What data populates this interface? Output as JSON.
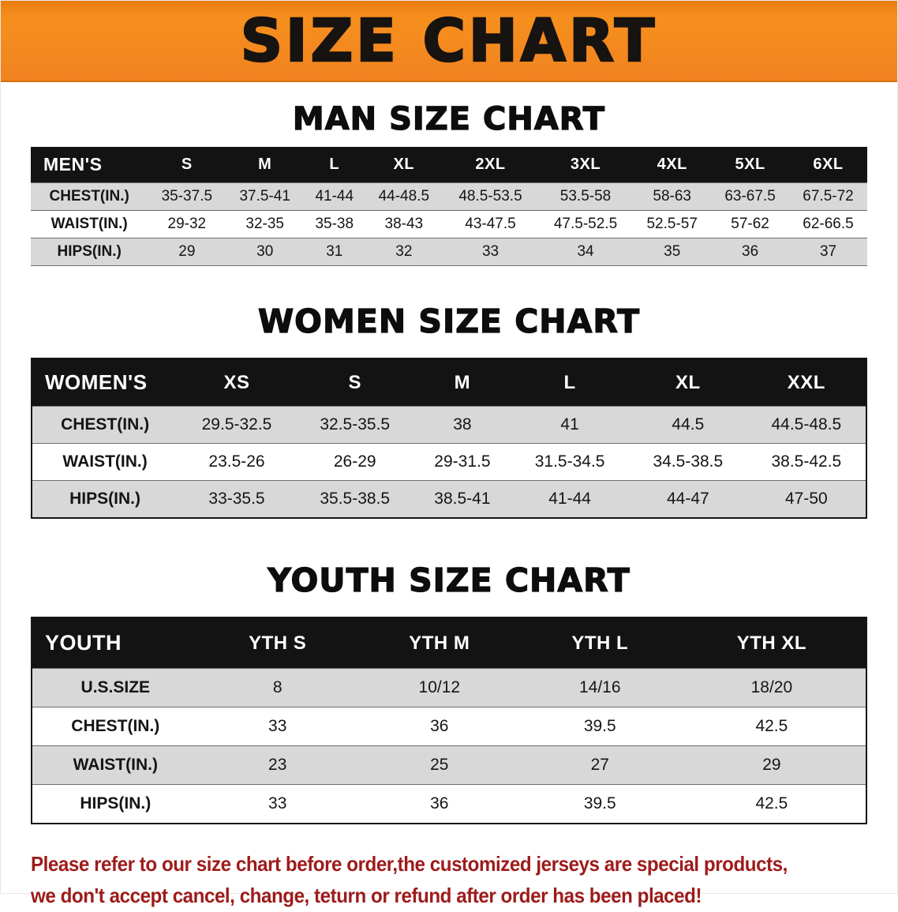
{
  "banner": {
    "title": "SIZE CHART"
  },
  "sections": [
    {
      "id": "men",
      "heading": "MAN SIZE CHART",
      "table": {
        "title": "MEN'S",
        "sizes": [
          "S",
          "M",
          "L",
          "XL",
          "2XL",
          "3XL",
          "4XL",
          "5XL",
          "6XL"
        ],
        "rows": [
          {
            "label": "CHEST(IN.)",
            "values": [
              "35-37.5",
              "37.5-41",
              "41-44",
              "44-48.5",
              "48.5-53.5",
              "53.5-58",
              "58-63",
              "63-67.5",
              "67.5-72"
            ]
          },
          {
            "label": "WAIST(IN.)",
            "values": [
              "29-32",
              "32-35",
              "35-38",
              "38-43",
              "43-47.5",
              "47.5-52.5",
              "52.5-57",
              "57-62",
              "62-66.5"
            ]
          },
          {
            "label": "HIPS(IN.)",
            "values": [
              "29",
              "30",
              "31",
              "32",
              "33",
              "34",
              "35",
              "36",
              "37"
            ]
          }
        ]
      }
    },
    {
      "id": "women",
      "heading": "WOMEN SIZE CHART",
      "table": {
        "title": "WOMEN'S",
        "sizes": [
          "XS",
          "S",
          "M",
          "L",
          "XL",
          "XXL"
        ],
        "rows": [
          {
            "label": "CHEST(IN.)",
            "values": [
              "29.5-32.5",
              "32.5-35.5",
              "38",
              "41",
              "44.5",
              "44.5-48.5"
            ]
          },
          {
            "label": "WAIST(IN.)",
            "values": [
              "23.5-26",
              "26-29",
              "29-31.5",
              "31.5-34.5",
              "34.5-38.5",
              "38.5-42.5"
            ]
          },
          {
            "label": "HIPS(IN.)",
            "values": [
              "33-35.5",
              "35.5-38.5",
              "38.5-41",
              "41-44",
              "44-47",
              "47-50"
            ]
          }
        ]
      }
    },
    {
      "id": "youth",
      "heading": "YOUTH SIZE CHART",
      "table": {
        "title": "YOUTH",
        "sizes": [
          "YTH S",
          "YTH M",
          "YTH L",
          "YTH XL"
        ],
        "rows": [
          {
            "label": "U.S.SIZE",
            "values": [
              "8",
              "10/12",
              "14/16",
              "18/20"
            ]
          },
          {
            "label": "CHEST(IN.)",
            "values": [
              "33",
              "36",
              "39.5",
              "42.5"
            ]
          },
          {
            "label": "WAIST(IN.)",
            "values": [
              "23",
              "25",
              "27",
              "29"
            ]
          },
          {
            "label": "HIPS(IN.)",
            "values": [
              "33",
              "36",
              "39.5",
              "42.5"
            ]
          }
        ]
      }
    }
  ],
  "disclaimer": {
    "lines": [
      "Please refer to our size chart before order,the customized jerseys are special products,",
      "we don't accept cancel, change, teturn or refund after order has been placed!"
    ]
  },
  "colors": {
    "banner_orange": "#f18320",
    "header_black": "#131313",
    "row_shade": "#d8d8d8",
    "disclaimer_red": "#9e1b1b"
  }
}
